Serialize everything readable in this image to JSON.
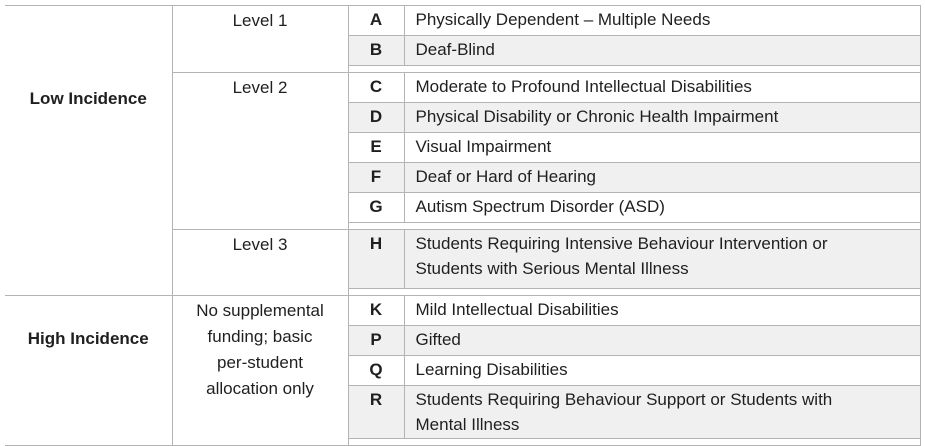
{
  "colors": {
    "border": "#b4b4b4",
    "row_shading": "#f0f0f0",
    "text": "#1f1f1f",
    "background": "#ffffff"
  },
  "table": {
    "groups": [
      {
        "incidence": "Low Incidence",
        "level": "Level 1",
        "rows": [
          {
            "code": "A",
            "description": "Physically Dependent – Multiple Needs"
          },
          {
            "code": "B",
            "description": "Deaf-Blind"
          }
        ]
      },
      {
        "level": "Level 2",
        "rows": [
          {
            "code": "C",
            "description": "Moderate to Profound Intellectual Disabilities"
          },
          {
            "code": "D",
            "description": "Physical Disability or Chronic Health Impairment"
          },
          {
            "code": "E",
            "description": "Visual Impairment"
          },
          {
            "code": "F",
            "description": "Deaf or Hard of Hearing"
          },
          {
            "code": "G",
            "description": "Autism Spectrum Disorder (ASD)"
          }
        ]
      },
      {
        "level": "Level 3",
        "rows": [
          {
            "code": "H",
            "description": "Students Requiring Intensive Behaviour Intervention or\nStudents with Serious Mental Illness"
          }
        ]
      },
      {
        "incidence": "High Incidence",
        "level": "No supplemental\nfunding; basic\nper-student\nallocation only",
        "rows": [
          {
            "code": "K",
            "description": "Mild Intellectual Disabilities"
          },
          {
            "code": "P",
            "description": "Gifted"
          },
          {
            "code": "Q",
            "description": "Learning Disabilities"
          },
          {
            "code": "R",
            "description": "Students Requiring Behaviour Support or Students with\nMental Illness"
          }
        ]
      }
    ]
  }
}
